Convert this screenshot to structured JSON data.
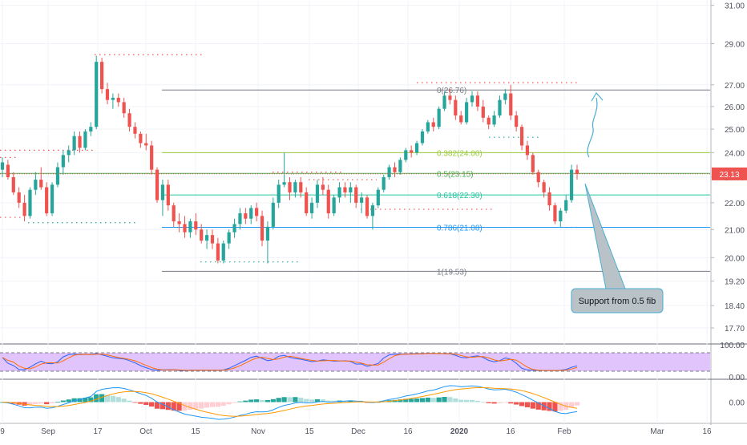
{
  "chart_data": {
    "type": "candlestick",
    "title": "",
    "xlabel": "",
    "ylabel": "",
    "ylim": [
      17.3,
      31.3
    ],
    "y_scale": "log",
    "grid": true,
    "price_axis_ticks": [
      "31.00",
      "29.00",
      "27.00",
      "26.00",
      "25.00",
      "24.00",
      "23.00",
      "22.00",
      "21.00",
      "20.00",
      "19.20",
      "18.40",
      "17.70"
    ],
    "time_axis_labels": [
      "9",
      "Sep",
      "17",
      "Oct",
      "15",
      "Nov",
      "15",
      "Dec",
      "16",
      "2020",
      "16",
      "Feb",
      "Mar",
      "16"
    ],
    "last_price": 23.13,
    "last_price_label": "23.13",
    "colors": {
      "up": "#26a69a",
      "down": "#ef5350",
      "rsi_band": "#e1c4fb",
      "annotation": "#4aaed3"
    },
    "fib_levels": [
      {
        "ratio": "0",
        "price": 26.76,
        "label": "0(26.76)",
        "color": "#787b86"
      },
      {
        "ratio": "0.382",
        "price": 24.0,
        "label": "0.382(24.00)",
        "color": "#9bcb3d"
      },
      {
        "ratio": "0.5",
        "price": 23.15,
        "label": "0.5(23.15)",
        "color": "#4caf50"
      },
      {
        "ratio": "0.618",
        "price": 22.3,
        "label": "0.618(22.30)",
        "color": "#26c6a0"
      },
      {
        "ratio": "0.786",
        "price": 21.08,
        "label": "0.786(21.08)",
        "color": "#2196f3"
      },
      {
        "ratio": "1",
        "price": 19.53,
        "label": "1(19.53)",
        "color": "#787b86"
      }
    ],
    "annotation_text": "Support from 0.5 fib",
    "series": [
      {
        "name": "",
        "values": [
          [
            23.3,
            23.8,
            23.0,
            23.6
          ],
          [
            23.5,
            23.7,
            22.9,
            23.0
          ],
          [
            23.0,
            23.2,
            22.3,
            22.4
          ],
          [
            22.4,
            22.6,
            21.8,
            22.0
          ],
          [
            22.0,
            22.3,
            21.3,
            21.5
          ],
          [
            21.5,
            22.6,
            21.4,
            22.5
          ],
          [
            22.5,
            23.2,
            22.3,
            22.9
          ],
          [
            22.9,
            23.4,
            22.5,
            22.6
          ],
          [
            22.6,
            22.8,
            21.5,
            21.6
          ],
          [
            21.6,
            22.8,
            21.5,
            22.7
          ],
          [
            22.7,
            23.6,
            22.6,
            23.4
          ],
          [
            23.4,
            24.1,
            23.1,
            23.9
          ],
          [
            23.9,
            24.3,
            23.6,
            24.1
          ],
          [
            24.1,
            24.9,
            23.9,
            24.7
          ],
          [
            24.7,
            24.9,
            24.0,
            24.2
          ],
          [
            24.2,
            25.0,
            24.1,
            24.9
          ],
          [
            24.9,
            25.3,
            24.7,
            25.1
          ],
          [
            25.1,
            28.4,
            25.0,
            28.1
          ],
          [
            28.1,
            28.3,
            26.6,
            26.8
          ],
          [
            26.8,
            27.1,
            26.1,
            26.3
          ],
          [
            26.3,
            26.6,
            25.9,
            26.4
          ],
          [
            26.4,
            26.6,
            26.0,
            26.2
          ],
          [
            26.2,
            26.4,
            25.5,
            25.7
          ],
          [
            25.7,
            25.9,
            24.9,
            25.1
          ],
          [
            25.1,
            25.3,
            24.6,
            24.8
          ],
          [
            24.8,
            24.9,
            24.2,
            24.4
          ],
          [
            24.4,
            24.8,
            24.1,
            24.3
          ],
          [
            24.3,
            24.5,
            23.1,
            23.3
          ],
          [
            23.3,
            23.4,
            22.0,
            22.1
          ],
          [
            22.1,
            22.9,
            21.5,
            22.7
          ],
          [
            22.7,
            22.9,
            21.7,
            21.9
          ],
          [
            21.9,
            22.0,
            21.1,
            21.3
          ],
          [
            21.3,
            21.6,
            20.9,
            21.2
          ],
          [
            21.2,
            21.5,
            20.7,
            20.9
          ],
          [
            20.9,
            21.4,
            20.7,
            21.3
          ],
          [
            21.3,
            21.6,
            20.8,
            21.0
          ],
          [
            21.0,
            21.2,
            20.5,
            20.6
          ],
          [
            20.6,
            21.0,
            20.3,
            20.8
          ],
          [
            20.8,
            21.0,
            20.3,
            20.5
          ],
          [
            20.5,
            20.7,
            19.8,
            19.9
          ],
          [
            19.9,
            20.6,
            19.8,
            20.5
          ],
          [
            20.5,
            21.0,
            20.3,
            20.9
          ],
          [
            20.9,
            21.4,
            20.7,
            21.2
          ],
          [
            21.2,
            21.8,
            21.0,
            21.6
          ],
          [
            21.6,
            21.8,
            21.2,
            21.4
          ],
          [
            21.4,
            21.9,
            21.2,
            21.8
          ],
          [
            21.8,
            22.0,
            21.3,
            21.5
          ],
          [
            21.5,
            21.7,
            20.4,
            20.6
          ],
          [
            20.6,
            21.3,
            19.8,
            21.1
          ],
          [
            21.1,
            22.2,
            21.0,
            22.0
          ],
          [
            22.0,
            22.9,
            21.8,
            22.7
          ],
          [
            22.7,
            24.0,
            22.6,
            22.8
          ],
          [
            22.8,
            23.0,
            22.1,
            22.4
          ],
          [
            22.4,
            22.9,
            22.2,
            22.8
          ],
          [
            22.8,
            23.0,
            22.2,
            22.4
          ],
          [
            22.4,
            22.6,
            21.5,
            21.6
          ],
          [
            21.6,
            22.2,
            21.4,
            22.0
          ],
          [
            22.0,
            22.9,
            21.8,
            22.7
          ],
          [
            22.7,
            23.0,
            22.3,
            22.5
          ],
          [
            22.5,
            22.7,
            21.4,
            21.6
          ],
          [
            21.6,
            22.3,
            21.5,
            22.2
          ],
          [
            22.2,
            22.8,
            22.0,
            22.6
          ],
          [
            22.6,
            22.8,
            22.2,
            22.4
          ],
          [
            22.4,
            22.8,
            22.0,
            22.6
          ],
          [
            22.6,
            22.7,
            21.8,
            22.0
          ],
          [
            22.0,
            22.4,
            21.6,
            22.2
          ],
          [
            22.2,
            22.3,
            21.4,
            21.5
          ],
          [
            21.5,
            22.0,
            21.0,
            21.9
          ],
          [
            21.9,
            22.6,
            21.8,
            22.5
          ],
          [
            22.5,
            23.1,
            22.4,
            23.0
          ],
          [
            23.0,
            23.5,
            22.9,
            23.4
          ],
          [
            23.4,
            23.6,
            23.0,
            23.2
          ],
          [
            23.2,
            23.8,
            23.1,
            23.7
          ],
          [
            23.7,
            24.2,
            23.6,
            24.1
          ],
          [
            24.1,
            24.3,
            23.8,
            24.0
          ],
          [
            24.0,
            24.5,
            23.9,
            24.4
          ],
          [
            24.4,
            25.0,
            24.3,
            24.9
          ],
          [
            24.9,
            25.4,
            24.8,
            25.3
          ],
          [
            25.3,
            25.5,
            24.9,
            25.1
          ],
          [
            25.1,
            26.0,
            25.0,
            25.9
          ],
          [
            25.9,
            26.7,
            25.8,
            26.5
          ],
          [
            26.5,
            26.8,
            26.1,
            26.3
          ],
          [
            26.3,
            26.5,
            25.4,
            25.6
          ],
          [
            25.6,
            25.8,
            25.2,
            25.3
          ],
          [
            25.3,
            26.4,
            25.2,
            26.2
          ],
          [
            26.2,
            26.7,
            26.0,
            26.5
          ],
          [
            26.5,
            26.7,
            25.8,
            26.0
          ],
          [
            26.0,
            26.3,
            25.3,
            25.5
          ],
          [
            25.5,
            25.6,
            25.0,
            25.2
          ],
          [
            25.2,
            25.8,
            25.1,
            25.6
          ],
          [
            25.6,
            26.5,
            25.5,
            26.3
          ],
          [
            26.3,
            26.8,
            26.1,
            26.6
          ],
          [
            26.6,
            27.0,
            25.4,
            25.6
          ],
          [
            25.6,
            25.8,
            24.9,
            25.1
          ],
          [
            25.1,
            25.2,
            24.1,
            24.3
          ],
          [
            24.3,
            24.5,
            23.7,
            23.9
          ],
          [
            23.9,
            24.0,
            23.1,
            23.2
          ],
          [
            23.2,
            23.3,
            22.6,
            22.8
          ],
          [
            22.8,
            22.9,
            22.2,
            22.4
          ],
          [
            22.4,
            22.6,
            21.7,
            21.9
          ],
          [
            21.9,
            22.0,
            21.2,
            21.3
          ],
          [
            21.3,
            21.8,
            21.1,
            21.7
          ],
          [
            21.7,
            22.3,
            21.6,
            22.1
          ],
          [
            22.1,
            23.5,
            22.0,
            23.3
          ],
          [
            23.3,
            23.5,
            22.9,
            23.13
          ]
        ]
      }
    ],
    "rsi_ticks": [
      "100.00",
      "0.00"
    ],
    "macd_ticks": [
      "0.00"
    ]
  }
}
